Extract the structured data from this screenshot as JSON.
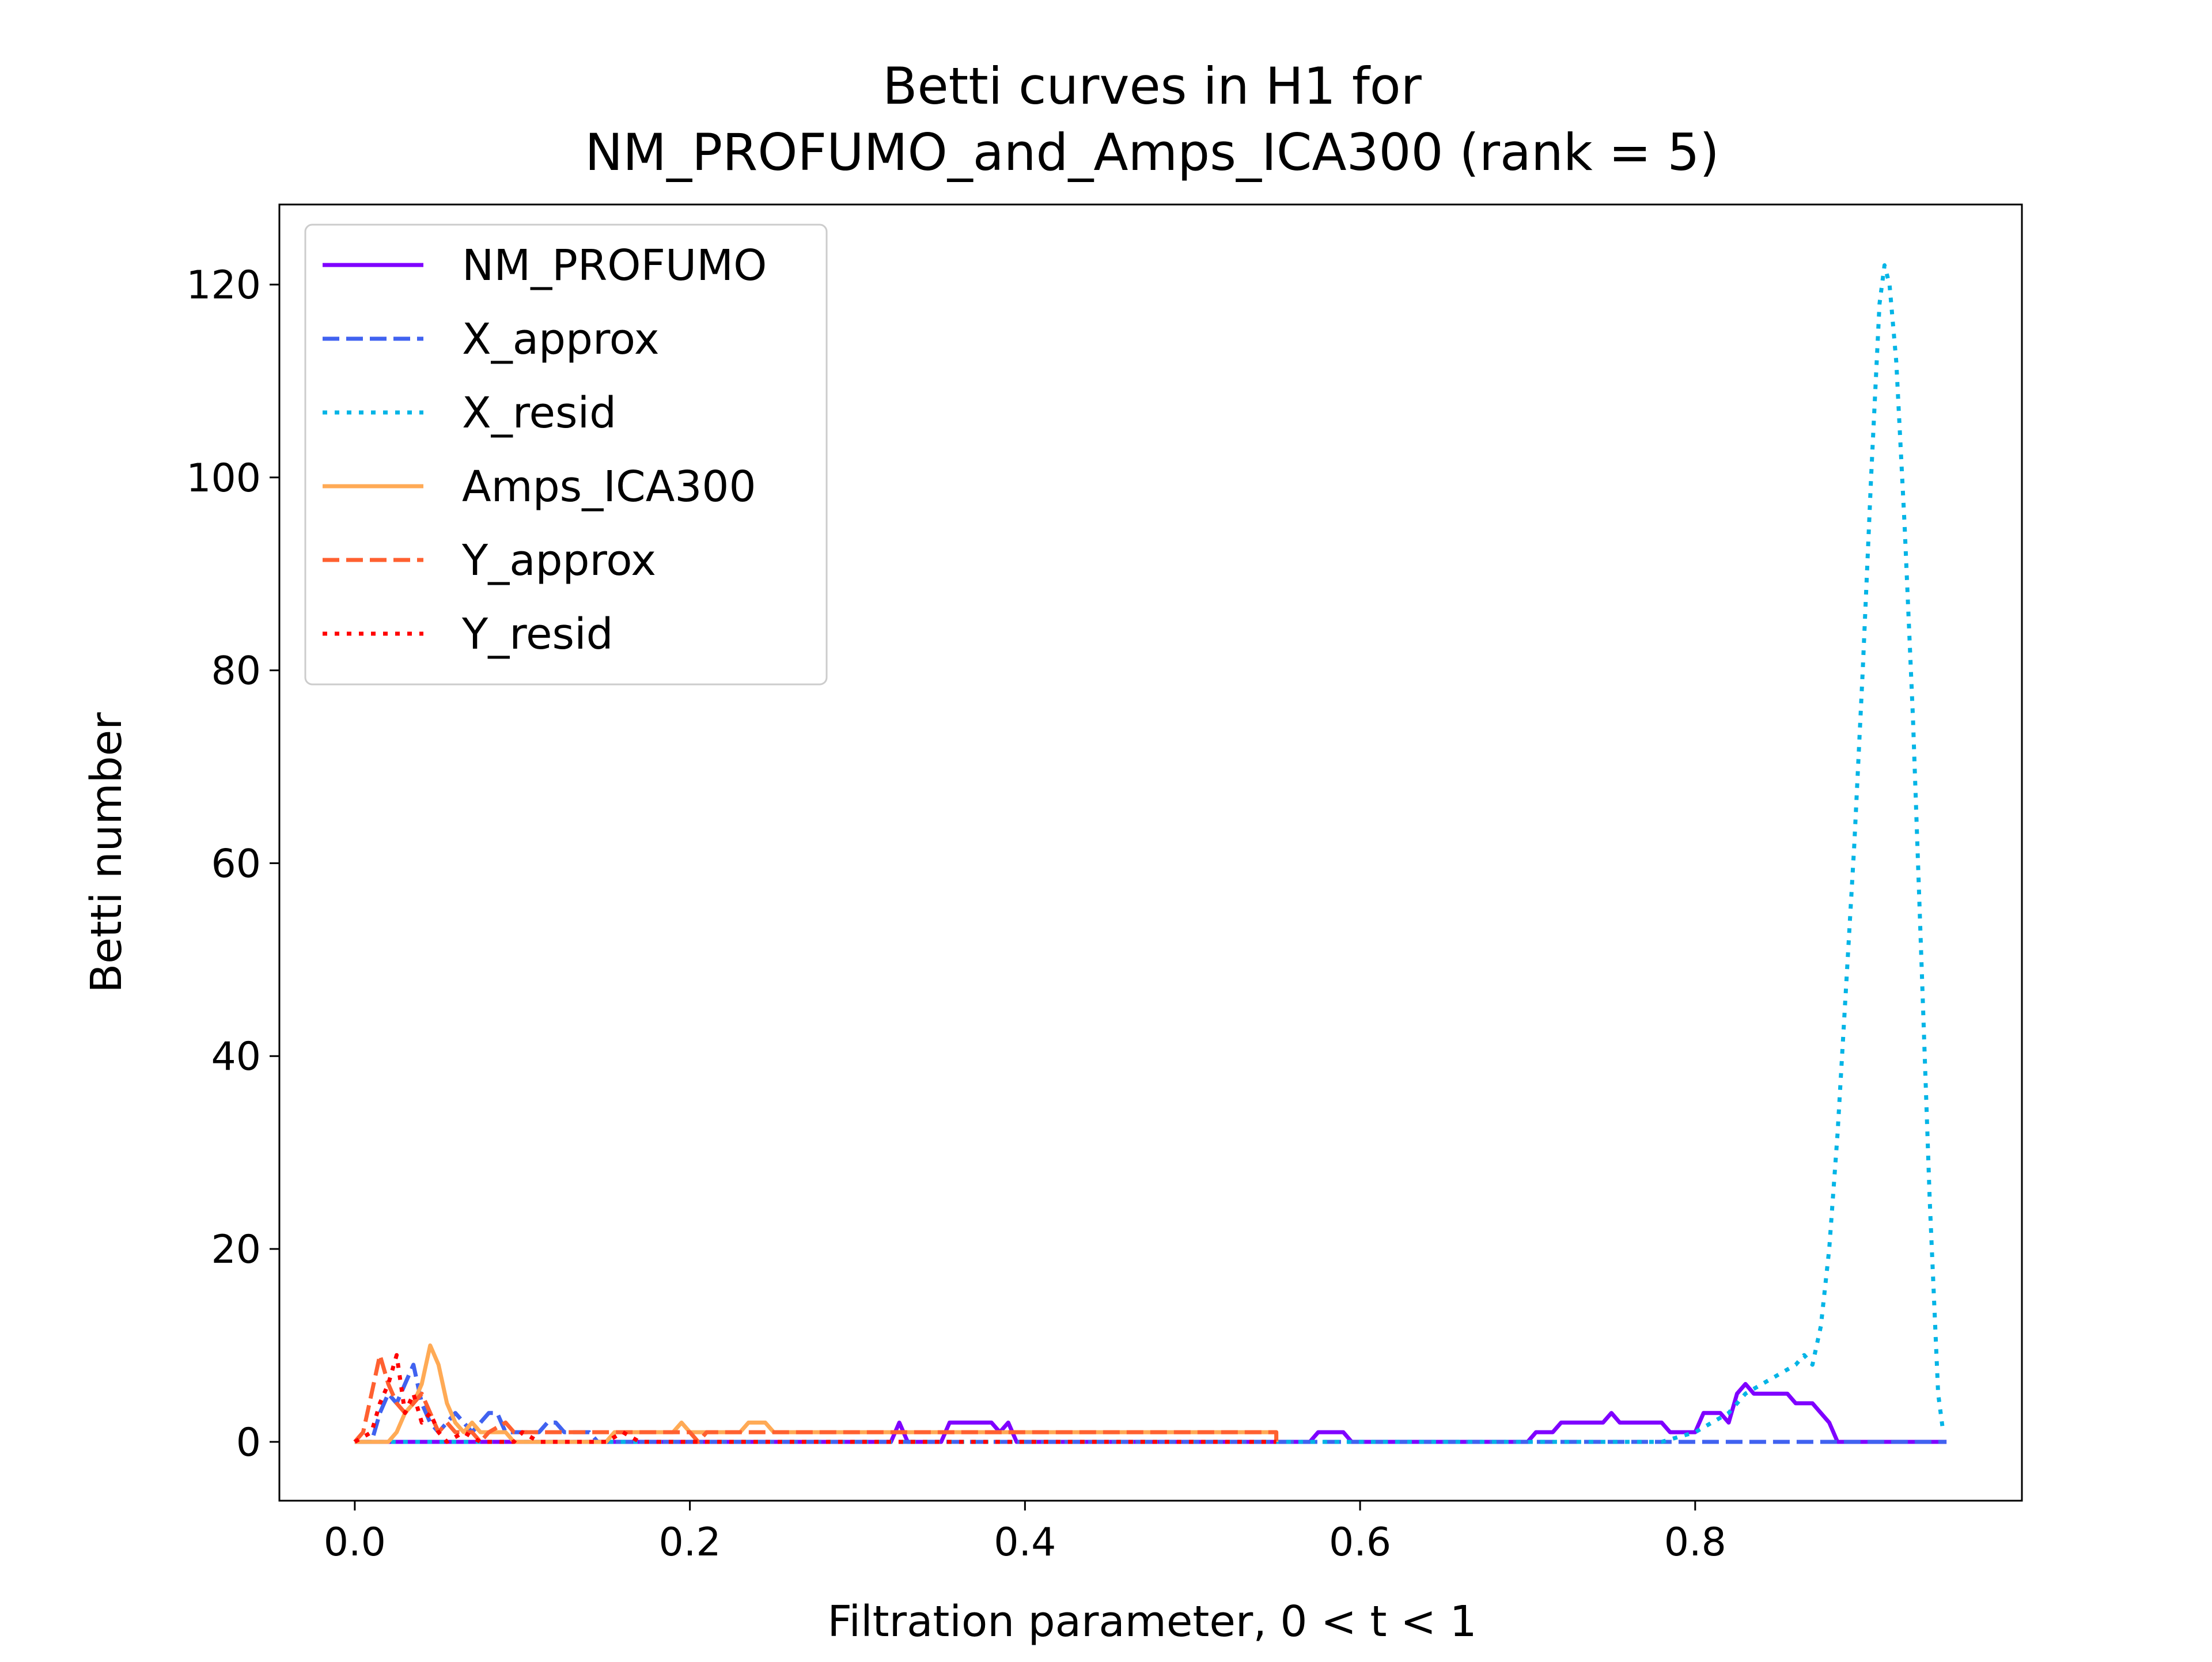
{
  "chart_data": {
    "type": "line",
    "title_line1": "Betti curves in H1 for",
    "title_line2": "NM_PROFUMO_and_Amps_ICA300 (rank = 5)",
    "xlabel": "Filtration parameter, 0 < t < 1",
    "ylabel": "Betti number",
    "xlim": [
      -0.045,
      0.995
    ],
    "ylim": [
      -6.1,
      128.3
    ],
    "xticks": [
      0.0,
      0.2,
      0.4,
      0.6,
      0.8
    ],
    "xtick_labels": [
      "0.0",
      "0.2",
      "0.4",
      "0.6",
      "0.8"
    ],
    "yticks": [
      0,
      20,
      40,
      60,
      80,
      100,
      120
    ],
    "ytick_labels": [
      "0",
      "20",
      "40",
      "60",
      "80",
      "100",
      "120"
    ],
    "grid": false,
    "legend_position": "top-left",
    "series": [
      {
        "name": "NM_PROFUMO",
        "color": "#7f00ff",
        "dash": "solid",
        "points": [
          [
            0.0,
            0
          ],
          [
            0.32,
            0
          ],
          [
            0.325,
            2
          ],
          [
            0.33,
            0
          ],
          [
            0.35,
            0
          ],
          [
            0.355,
            2
          ],
          [
            0.38,
            2
          ],
          [
            0.385,
            1
          ],
          [
            0.39,
            2
          ],
          [
            0.395,
            0
          ],
          [
            0.57,
            0
          ],
          [
            0.575,
            1
          ],
          [
            0.59,
            1
          ],
          [
            0.595,
            0
          ],
          [
            0.7,
            0
          ],
          [
            0.705,
            1
          ],
          [
            0.715,
            1
          ],
          [
            0.72,
            2
          ],
          [
            0.745,
            2
          ],
          [
            0.75,
            3
          ],
          [
            0.755,
            2
          ],
          [
            0.78,
            2
          ],
          [
            0.785,
            1
          ],
          [
            0.8,
            1
          ],
          [
            0.805,
            3
          ],
          [
            0.815,
            3
          ],
          [
            0.82,
            2
          ],
          [
            0.825,
            5
          ],
          [
            0.83,
            6
          ],
          [
            0.835,
            5
          ],
          [
            0.855,
            5
          ],
          [
            0.86,
            4
          ],
          [
            0.87,
            4
          ],
          [
            0.88,
            2
          ],
          [
            0.885,
            0
          ],
          [
            0.95,
            0
          ]
        ]
      },
      {
        "name": "X_approx",
        "color": "#4062f0",
        "dash": "dashed",
        "points": [
          [
            0.0,
            0
          ],
          [
            0.01,
            0
          ],
          [
            0.015,
            3
          ],
          [
            0.02,
            5
          ],
          [
            0.025,
            4
          ],
          [
            0.03,
            6
          ],
          [
            0.035,
            8
          ],
          [
            0.04,
            4
          ],
          [
            0.045,
            2
          ],
          [
            0.05,
            1
          ],
          [
            0.06,
            3
          ],
          [
            0.065,
            2
          ],
          [
            0.07,
            1
          ],
          [
            0.075,
            2
          ],
          [
            0.08,
            3
          ],
          [
            0.085,
            3
          ],
          [
            0.09,
            1
          ],
          [
            0.1,
            1
          ],
          [
            0.11,
            1
          ],
          [
            0.115,
            2
          ],
          [
            0.12,
            2
          ],
          [
            0.125,
            1
          ],
          [
            0.14,
            1
          ],
          [
            0.145,
            0
          ],
          [
            0.95,
            0
          ]
        ]
      },
      {
        "name": "X_resid",
        "color": "#00b4e6",
        "dash": "dotted",
        "points": [
          [
            0.0,
            0
          ],
          [
            0.78,
            0
          ],
          [
            0.8,
            1
          ],
          [
            0.81,
            2
          ],
          [
            0.82,
            3
          ],
          [
            0.83,
            5
          ],
          [
            0.84,
            6
          ],
          [
            0.85,
            7
          ],
          [
            0.86,
            8
          ],
          [
            0.865,
            9
          ],
          [
            0.87,
            8
          ],
          [
            0.875,
            12
          ],
          [
            0.88,
            20
          ],
          [
            0.885,
            32
          ],
          [
            0.89,
            47
          ],
          [
            0.895,
            62
          ],
          [
            0.9,
            80
          ],
          [
            0.905,
            100
          ],
          [
            0.91,
            118
          ],
          [
            0.913,
            122
          ],
          [
            0.916,
            120
          ],
          [
            0.92,
            112
          ],
          [
            0.925,
            95
          ],
          [
            0.93,
            75
          ],
          [
            0.935,
            50
          ],
          [
            0.94,
            25
          ],
          [
            0.945,
            5
          ],
          [
            0.948,
            1
          ]
        ]
      },
      {
        "name": "Amps_ICA300",
        "color": "#ffaa55",
        "dash": "solid",
        "points": [
          [
            0.0,
            0
          ],
          [
            0.02,
            0
          ],
          [
            0.025,
            1
          ],
          [
            0.03,
            3
          ],
          [
            0.035,
            4
          ],
          [
            0.04,
            6
          ],
          [
            0.045,
            10
          ],
          [
            0.05,
            8
          ],
          [
            0.055,
            4
          ],
          [
            0.06,
            2
          ],
          [
            0.065,
            1
          ],
          [
            0.07,
            2
          ],
          [
            0.075,
            1
          ],
          [
            0.09,
            1
          ],
          [
            0.095,
            0
          ],
          [
            0.15,
            0
          ],
          [
            0.155,
            1
          ],
          [
            0.19,
            1
          ],
          [
            0.195,
            2
          ],
          [
            0.2,
            1
          ],
          [
            0.23,
            1
          ],
          [
            0.235,
            2
          ],
          [
            0.245,
            2
          ],
          [
            0.25,
            1
          ],
          [
            0.55,
            1
          ],
          [
            0.55,
            0
          ]
        ]
      },
      {
        "name": "Y_approx",
        "color": "#ff6030",
        "dash": "dashed",
        "points": [
          [
            0.0,
            0
          ],
          [
            0.005,
            1
          ],
          [
            0.01,
            5
          ],
          [
            0.015,
            9
          ],
          [
            0.02,
            6
          ],
          [
            0.025,
            4
          ],
          [
            0.03,
            3
          ],
          [
            0.035,
            4
          ],
          [
            0.04,
            5
          ],
          [
            0.045,
            3
          ],
          [
            0.05,
            1
          ],
          [
            0.055,
            2
          ],
          [
            0.06,
            1
          ],
          [
            0.07,
            1
          ],
          [
            0.075,
            0
          ],
          [
            0.08,
            1
          ],
          [
            0.09,
            2
          ],
          [
            0.095,
            1
          ],
          [
            0.2,
            1
          ],
          [
            0.205,
            0
          ],
          [
            0.21,
            1
          ],
          [
            0.55,
            1
          ],
          [
            0.55,
            0
          ]
        ]
      },
      {
        "name": "Y_resid",
        "color": "#ff0000",
        "dash": "dotted",
        "points": [
          [
            0.0,
            0
          ],
          [
            0.01,
            1
          ],
          [
            0.015,
            4
          ],
          [
            0.02,
            6
          ],
          [
            0.025,
            9
          ],
          [
            0.03,
            3
          ],
          [
            0.035,
            5
          ],
          [
            0.04,
            2
          ],
          [
            0.045,
            3
          ],
          [
            0.05,
            1
          ],
          [
            0.055,
            0
          ],
          [
            0.065,
            1
          ],
          [
            0.075,
            0
          ],
          [
            0.095,
            0
          ],
          [
            0.1,
            1
          ],
          [
            0.11,
            0
          ],
          [
            0.15,
            0
          ],
          [
            0.16,
            1
          ],
          [
            0.17,
            0
          ],
          [
            0.55,
            0
          ]
        ]
      }
    ]
  }
}
